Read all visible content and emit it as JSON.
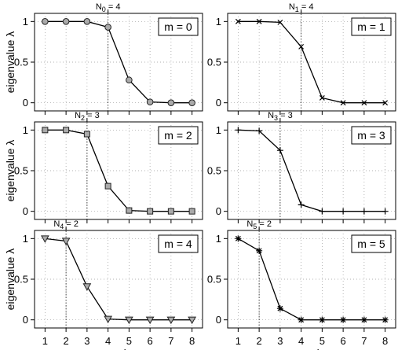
{
  "figure": {
    "ylabel": "eigenvalue λ",
    "xlabel": "rank"
  },
  "chart_data": [
    {
      "type": "line",
      "panel": "m = 0",
      "cutoff_label": "N0 = 4",
      "cutoff_sub": "0",
      "cutoff": 4,
      "marker": "circle",
      "x": [
        1,
        2,
        3,
        4,
        5,
        6,
        7,
        8
      ],
      "values": [
        1.0,
        1.0,
        1.0,
        0.93,
        0.28,
        0.01,
        0.0,
        0.0
      ],
      "xlim": [
        0.5,
        8.5
      ],
      "ylim": [
        -0.1,
        1.1
      ],
      "xticks": [
        1,
        2,
        3,
        4,
        5,
        6,
        7,
        8
      ],
      "yticks": [
        0,
        0.5,
        1
      ],
      "xtick_labels_shown": false,
      "ylabel_shown": true,
      "xlabel_shown": false
    },
    {
      "type": "line",
      "panel": "m = 1",
      "cutoff_label": "N1 = 4",
      "cutoff_sub": "1",
      "cutoff": 4,
      "marker": "x",
      "x": [
        1,
        2,
        3,
        4,
        5,
        6,
        7,
        8
      ],
      "values": [
        1.0,
        1.0,
        0.99,
        0.69,
        0.06,
        0.0,
        0.0,
        0.0
      ],
      "xlim": [
        0.5,
        8.5
      ],
      "ylim": [
        -0.1,
        1.1
      ],
      "xticks": [
        1,
        2,
        3,
        4,
        5,
        6,
        7,
        8
      ],
      "yticks": [
        0,
        0.5,
        1
      ],
      "xtick_labels_shown": false,
      "ylabel_shown": false,
      "xlabel_shown": false
    },
    {
      "type": "line",
      "panel": "m = 2",
      "cutoff_label": "N2 = 3",
      "cutoff_sub": "2",
      "cutoff": 3,
      "marker": "square",
      "x": [
        1,
        2,
        3,
        4,
        5,
        6,
        7,
        8
      ],
      "values": [
        1.0,
        1.0,
        0.95,
        0.31,
        0.01,
        0.0,
        0.0,
        0.0
      ],
      "xlim": [
        0.5,
        8.5
      ],
      "ylim": [
        -0.1,
        1.1
      ],
      "xticks": [
        1,
        2,
        3,
        4,
        5,
        6,
        7,
        8
      ],
      "yticks": [
        0,
        0.5,
        1
      ],
      "xtick_labels_shown": false,
      "ylabel_shown": true,
      "xlabel_shown": false
    },
    {
      "type": "line",
      "panel": "m = 3",
      "cutoff_label": "N3 = 3",
      "cutoff_sub": "3",
      "cutoff": 3,
      "marker": "plus",
      "x": [
        1,
        2,
        3,
        4,
        5,
        6,
        7,
        8
      ],
      "values": [
        1.0,
        0.99,
        0.75,
        0.08,
        0.0,
        0.0,
        0.0,
        0.0
      ],
      "xlim": [
        0.5,
        8.5
      ],
      "ylim": [
        -0.1,
        1.1
      ],
      "xticks": [
        1,
        2,
        3,
        4,
        5,
        6,
        7,
        8
      ],
      "yticks": [
        0,
        0.5,
        1
      ],
      "xtick_labels_shown": false,
      "ylabel_shown": false,
      "xlabel_shown": false
    },
    {
      "type": "line",
      "panel": "m = 4",
      "cutoff_label": "N4 = 2",
      "cutoff_sub": "4",
      "cutoff": 2,
      "marker": "triangle-down",
      "x": [
        1,
        2,
        3,
        4,
        5,
        6,
        7,
        8
      ],
      "values": [
        1.0,
        0.97,
        0.41,
        0.01,
        0.0,
        0.0,
        0.0,
        0.0
      ],
      "xlim": [
        0.5,
        8.5
      ],
      "ylim": [
        -0.1,
        1.1
      ],
      "xticks": [
        1,
        2,
        3,
        4,
        5,
        6,
        7,
        8
      ],
      "yticks": [
        0,
        0.5,
        1
      ],
      "xtick_labels_shown": true,
      "ylabel_shown": true,
      "xlabel_shown": true
    },
    {
      "type": "line",
      "panel": "m = 5",
      "cutoff_label": "N5 = 2",
      "cutoff_sub": "5",
      "cutoff": 2,
      "marker": "star",
      "x": [
        1,
        2,
        3,
        4,
        5,
        6,
        7,
        8
      ],
      "values": [
        1.0,
        0.85,
        0.14,
        0.0,
        0.0,
        0.0,
        0.0,
        0.0
      ],
      "xlim": [
        0.5,
        8.5
      ],
      "ylim": [
        -0.1,
        1.1
      ],
      "xticks": [
        1,
        2,
        3,
        4,
        5,
        6,
        7,
        8
      ],
      "yticks": [
        0,
        0.5,
        1
      ],
      "xtick_labels_shown": true,
      "ylabel_shown": false,
      "xlabel_shown": true
    }
  ]
}
